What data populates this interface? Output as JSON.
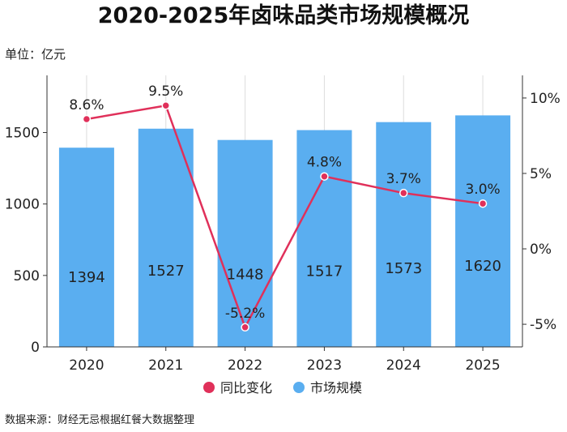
{
  "title": "2020-2025年卤味品类市场规模概况",
  "unit_label": "单位：亿元",
  "source": "数据来源：财经无忌根据红餐大数据整理",
  "colors": {
    "bar": "#5aaef0",
    "line": "#e0305a",
    "marker_fill": "#e0305a",
    "marker_stroke": "#ffffff",
    "grid": "#dddddd",
    "axis": "#333333"
  },
  "chart_data": {
    "type": "bar",
    "categories": [
      "2020",
      "2021",
      "2022",
      "2023",
      "2024",
      "2025"
    ],
    "series": [
      {
        "name": "市场规模",
        "type": "bar",
        "axis": "left",
        "values": [
          1394,
          1527,
          1448,
          1517,
          1573,
          1620
        ]
      },
      {
        "name": "同比变化",
        "type": "line",
        "axis": "right",
        "values": [
          8.6,
          9.5,
          -5.2,
          4.8,
          3.7,
          3.0
        ],
        "labels": [
          "8.6%",
          "9.5%",
          "-5.2%",
          "4.8%",
          "3.7%",
          "3.0%"
        ]
      }
    ],
    "y_left": {
      "range": [
        0,
        1900
      ],
      "ticks": [
        0,
        500,
        1000,
        1500
      ],
      "tick_labels": [
        "0",
        "500",
        "1000",
        "1500"
      ]
    },
    "y_right": {
      "range": [
        -6.5,
        11.5
      ],
      "ticks": [
        -5,
        0,
        5,
        10
      ],
      "tick_labels": [
        "-5%",
        "0%",
        "5%",
        "10%"
      ]
    },
    "grid": "vertical",
    "legend": {
      "position": "bottom",
      "entries": [
        "同比变化",
        "市场规模"
      ]
    }
  }
}
